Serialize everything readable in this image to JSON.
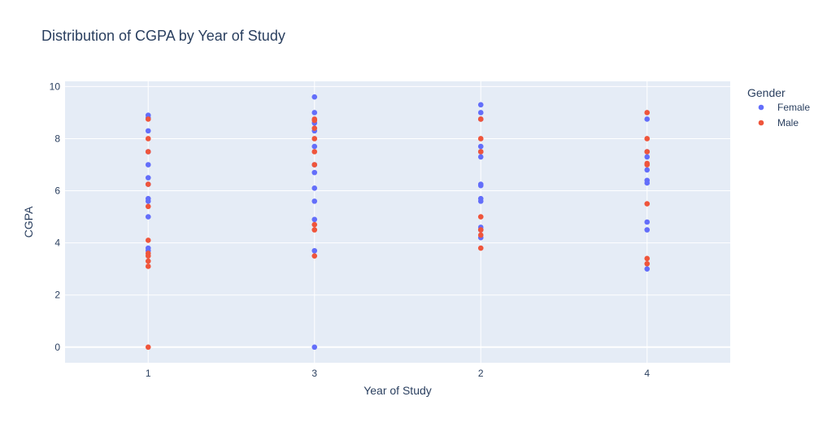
{
  "chart_data": {
    "type": "scatter",
    "title": "Distribution of CGPA by Year of Study",
    "xlabel": "Year of Study",
    "ylabel": "CGPA",
    "categories": [
      "1",
      "3",
      "2",
      "4"
    ],
    "ylim": [
      -0.6,
      10.2
    ],
    "yticks": [
      0,
      2,
      4,
      6,
      8,
      10
    ],
    "grid": true,
    "legend": {
      "title": "Gender",
      "placement": "top-right"
    },
    "series": [
      {
        "name": "Female",
        "color": "#636efa",
        "points": [
          [
            "1",
            8.9
          ],
          [
            "1",
            8.8
          ],
          [
            "1",
            8.3
          ],
          [
            "1",
            7.5
          ],
          [
            "1",
            7.0
          ],
          [
            "1",
            6.5
          ],
          [
            "1",
            6.25
          ],
          [
            "1",
            5.7
          ],
          [
            "1",
            5.6
          ],
          [
            "1",
            5.0
          ],
          [
            "1",
            3.8
          ],
          [
            "1",
            3.7
          ],
          [
            "3",
            9.6
          ],
          [
            "3",
            9.0
          ],
          [
            "3",
            8.6
          ],
          [
            "3",
            8.3
          ],
          [
            "3",
            7.7
          ],
          [
            "3",
            7.0
          ],
          [
            "3",
            6.7
          ],
          [
            "3",
            6.1
          ],
          [
            "3",
            5.6
          ],
          [
            "3",
            4.9
          ],
          [
            "3",
            3.7
          ],
          [
            "3",
            0.0
          ],
          [
            "2",
            9.3
          ],
          [
            "2",
            9.0
          ],
          [
            "2",
            8.75
          ],
          [
            "2",
            7.7
          ],
          [
            "2",
            7.5
          ],
          [
            "2",
            7.3
          ],
          [
            "2",
            6.25
          ],
          [
            "2",
            6.2
          ],
          [
            "2",
            5.7
          ],
          [
            "2",
            5.6
          ],
          [
            "2",
            4.6
          ],
          [
            "2",
            4.5
          ],
          [
            "2",
            4.2
          ],
          [
            "4",
            8.75
          ],
          [
            "4",
            7.5
          ],
          [
            "4",
            7.3
          ],
          [
            "4",
            6.8
          ],
          [
            "4",
            6.4
          ],
          [
            "4",
            6.3
          ],
          [
            "4",
            4.8
          ],
          [
            "4",
            4.5
          ],
          [
            "4",
            3.0
          ]
        ]
      },
      {
        "name": "Male",
        "color": "#ef553b",
        "points": [
          [
            "1",
            8.75
          ],
          [
            "1",
            8.0
          ],
          [
            "1",
            7.5
          ],
          [
            "1",
            6.25
          ],
          [
            "1",
            5.4
          ],
          [
            "1",
            4.1
          ],
          [
            "1",
            3.6
          ],
          [
            "1",
            3.5
          ],
          [
            "1",
            3.3
          ],
          [
            "1",
            3.1
          ],
          [
            "1",
            0.0
          ],
          [
            "3",
            8.75
          ],
          [
            "3",
            8.7
          ],
          [
            "3",
            8.4
          ],
          [
            "3",
            8.0
          ],
          [
            "3",
            7.5
          ],
          [
            "3",
            7.0
          ],
          [
            "3",
            4.7
          ],
          [
            "3",
            4.5
          ],
          [
            "3",
            3.5
          ],
          [
            "2",
            8.75
          ],
          [
            "2",
            8.0
          ],
          [
            "2",
            7.5
          ],
          [
            "2",
            5.0
          ],
          [
            "2",
            4.5
          ],
          [
            "2",
            4.3
          ],
          [
            "2",
            3.8
          ],
          [
            "4",
            9.0
          ],
          [
            "4",
            8.0
          ],
          [
            "4",
            7.5
          ],
          [
            "4",
            7.05
          ],
          [
            "4",
            7.0
          ],
          [
            "4",
            5.5
          ],
          [
            "4",
            3.4
          ],
          [
            "4",
            3.2
          ]
        ]
      }
    ]
  }
}
